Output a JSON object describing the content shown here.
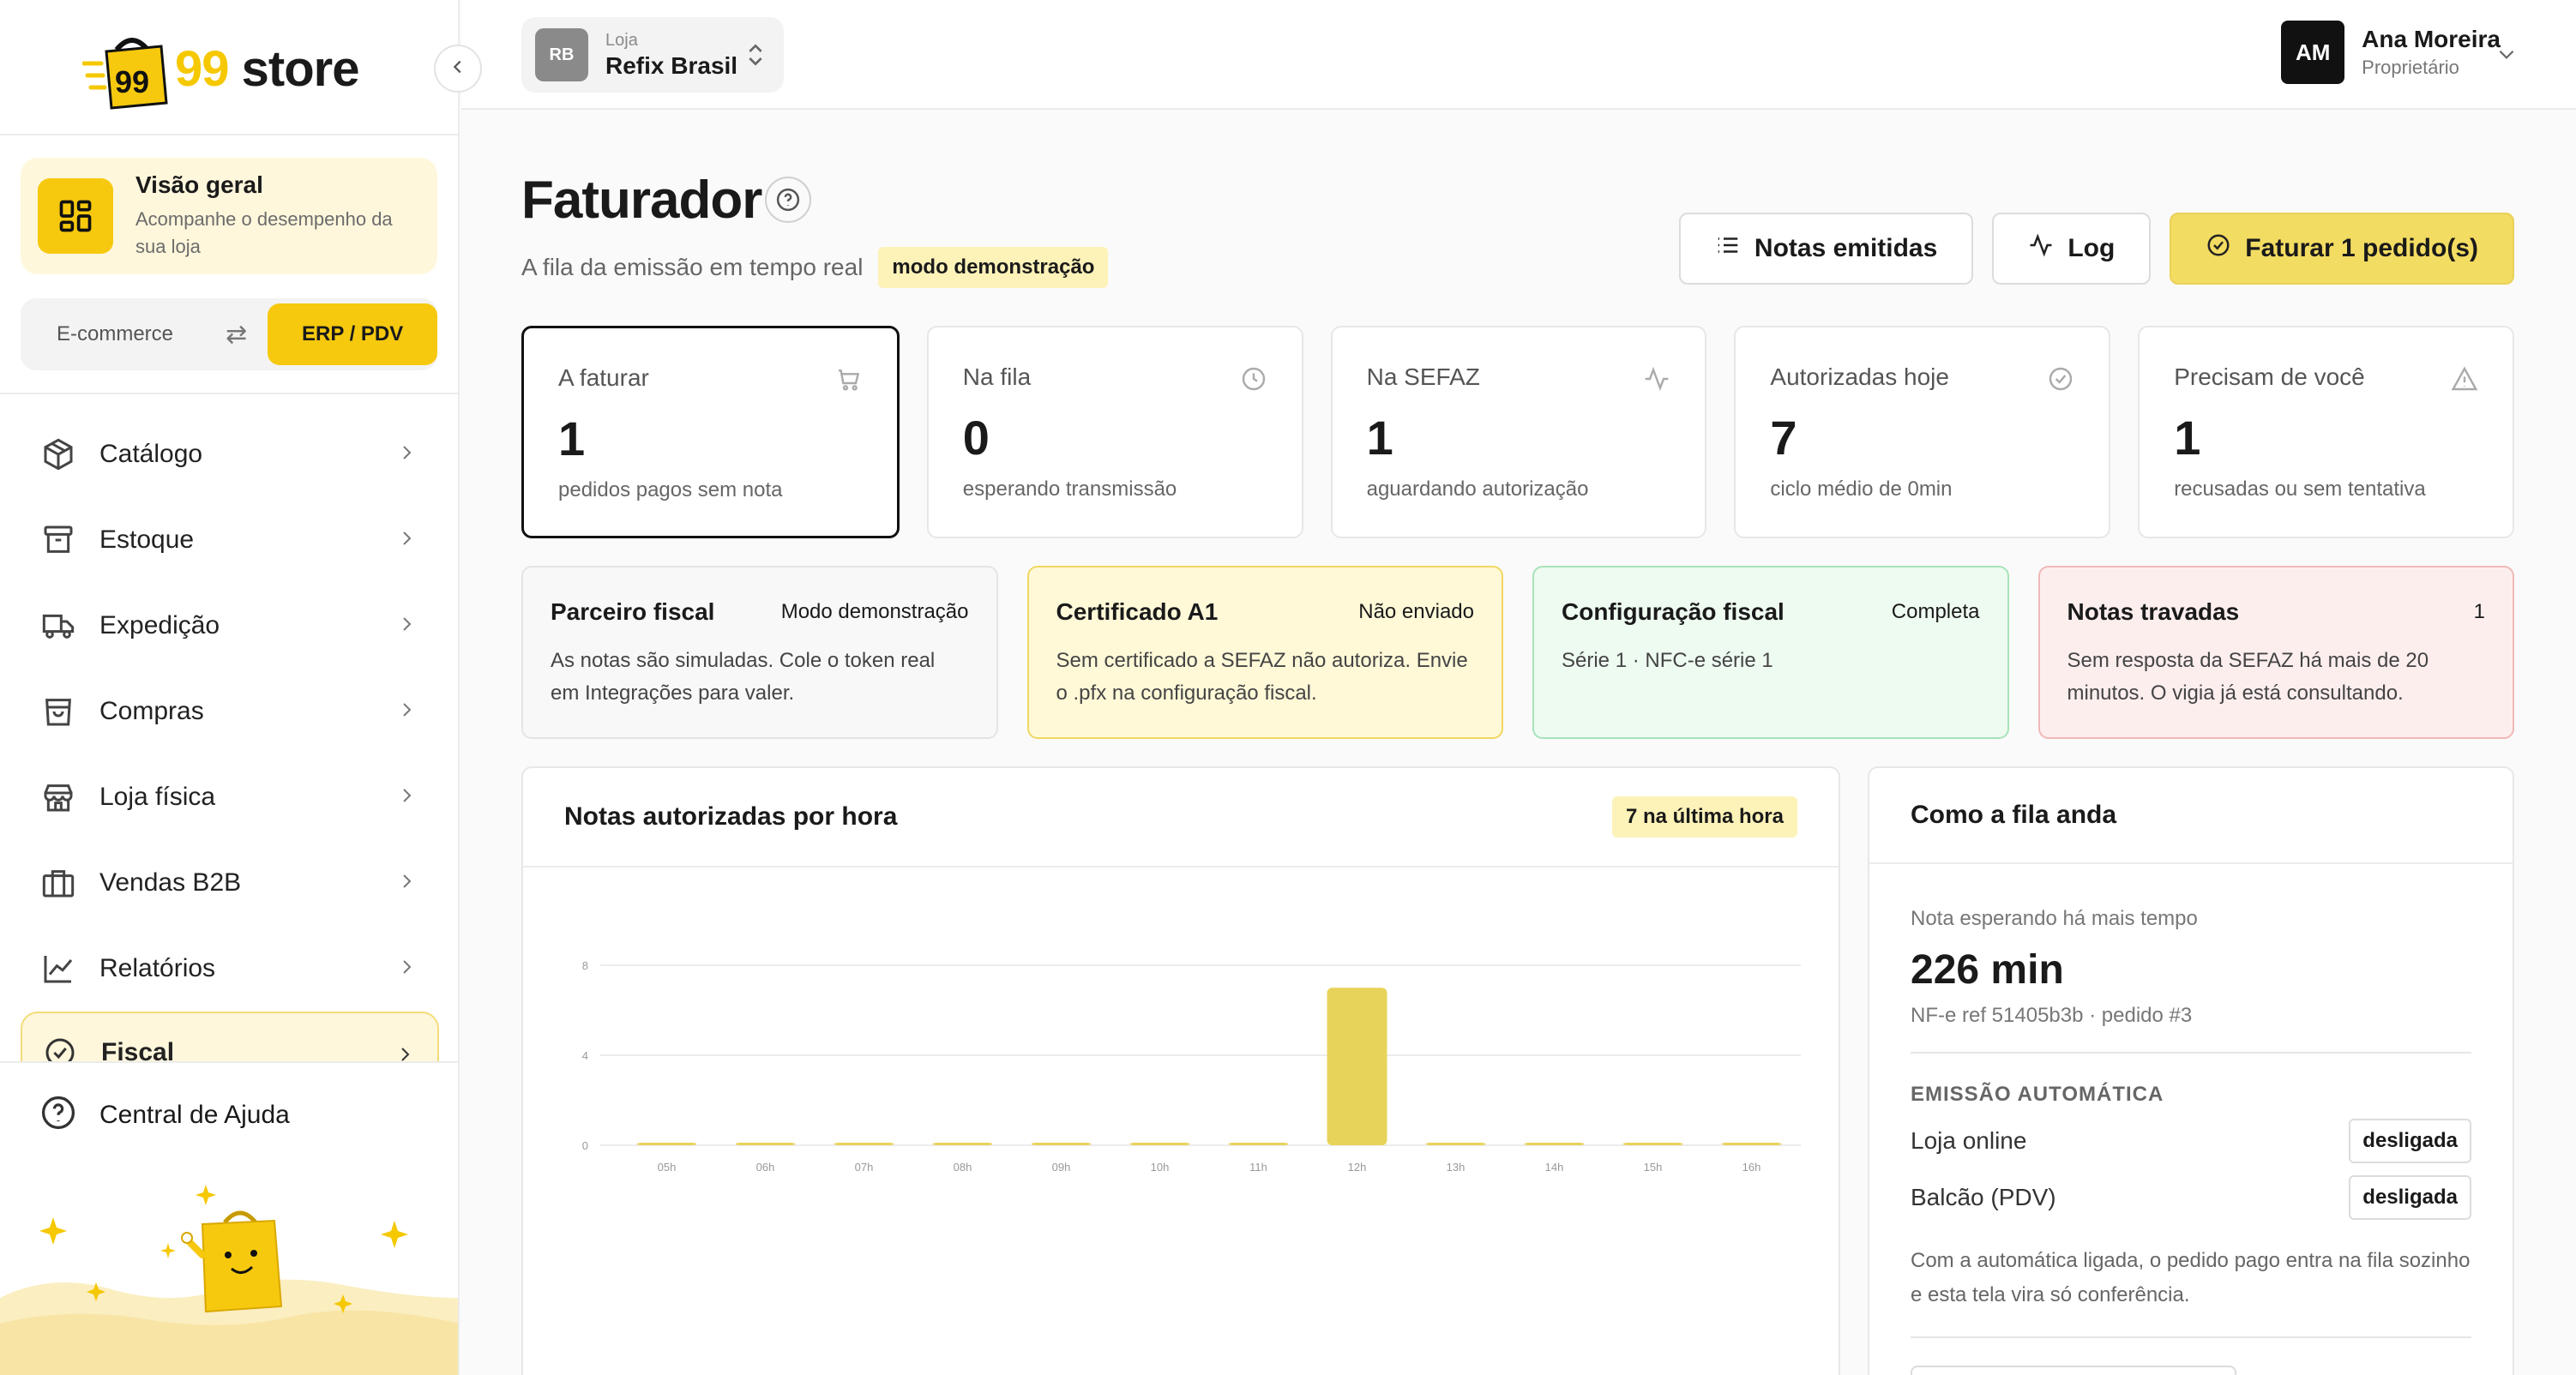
{
  "sidebar": {
    "logo_text_a": "99",
    "logo_text_b": "store",
    "logo_bag_text": "99",
    "overview": {
      "title": "Visão geral",
      "desc": "Acompanhe o desempenho da sua loja"
    },
    "mode": {
      "left": "E-commerce",
      "right": "ERP / PDV"
    },
    "items": [
      {
        "label": "Catálogo",
        "icon": "box-icon"
      },
      {
        "label": "Estoque",
        "icon": "archive-icon"
      },
      {
        "label": "Expedição",
        "icon": "truck-icon"
      },
      {
        "label": "Compras",
        "icon": "shopping-bag-icon"
      },
      {
        "label": "Loja física",
        "icon": "store-icon"
      },
      {
        "label": "Vendas B2B",
        "icon": "briefcase-icon"
      },
      {
        "label": "Relatórios",
        "icon": "chart-line-icon"
      },
      {
        "label": "Fiscal",
        "icon": "check-circle-icon"
      }
    ],
    "help": "Central de Ajuda"
  },
  "topbar": {
    "store_label": "Loja",
    "store_name": "Refix Brasil",
    "store_initials": "RB",
    "user_initials": "AM",
    "user_name": "Ana Moreira",
    "user_role": "Proprietário"
  },
  "page": {
    "title": "Faturador",
    "subtitle": "A fila da emissão em tempo real",
    "demo_badge": "modo demonstração",
    "actions": {
      "issued": "Notas emitidas",
      "log": "Log",
      "bill": "Faturar 1 pedido(s)"
    }
  },
  "stats": [
    {
      "label": "A faturar",
      "value": "1",
      "desc": "pedidos pagos sem nota",
      "icon": "cart-icon"
    },
    {
      "label": "Na fila",
      "value": "0",
      "desc": "esperando transmissão",
      "icon": "clock-icon"
    },
    {
      "label": "Na SEFAZ",
      "value": "1",
      "desc": "aguardando autorização",
      "icon": "activity-icon"
    },
    {
      "label": "Autorizadas hoje",
      "value": "7",
      "desc": "ciclo médio de 0min",
      "icon": "check-circle-icon"
    },
    {
      "label": "Precisam de você",
      "value": "1",
      "desc": "recusadas ou sem tentativa",
      "icon": "warning-icon"
    }
  ],
  "cards": [
    {
      "title": "Parceiro fiscal",
      "status": "Modo demonstração",
      "body": "As notas são simuladas. Cole o token real em Integrações para valer."
    },
    {
      "title": "Certificado A1",
      "status": "Não enviado",
      "body": "Sem certificado a SEFAZ não autoriza. Envie o .pfx na configuração fiscal."
    },
    {
      "title": "Configuração fiscal",
      "status": "Completa",
      "body": "Série 1 · NFC-e série 1"
    },
    {
      "title": "Notas travadas",
      "status": "1",
      "body": "Sem resposta da SEFAZ há mais de 20 minutos. O vigia já está consultando."
    }
  ],
  "chart_panel": {
    "title": "Notas autorizadas por hora",
    "badge": "7 na última hora"
  },
  "chart_data": {
    "type": "bar",
    "categories": [
      "05h",
      "06h",
      "07h",
      "08h",
      "09h",
      "10h",
      "11h",
      "12h",
      "13h",
      "14h",
      "15h",
      "16h"
    ],
    "values": [
      0,
      0,
      0,
      0,
      0,
      0,
      0,
      7,
      0,
      0,
      0,
      0
    ],
    "yticks": [
      "0",
      "4",
      "8"
    ],
    "ylim": [
      0,
      8
    ],
    "bar_color": "#e8d35a",
    "grid": true
  },
  "queue": {
    "title": "Como a fila anda",
    "oldest_label": "Nota esperando há mais tempo",
    "oldest_value": "226 min",
    "oldest_ref": "NF-e ref 51405b3b · pedido #3",
    "auto_section": "EMISSÃO AUTOMÁTICA",
    "rows": [
      {
        "label": "Loja online",
        "state": "desligada"
      },
      {
        "label": "Balcão (PDV)",
        "state": "desligada"
      }
    ],
    "note": "Com a automática ligada, o pedido pago entra na fila sozinho e esta tela vira só conferência."
  }
}
